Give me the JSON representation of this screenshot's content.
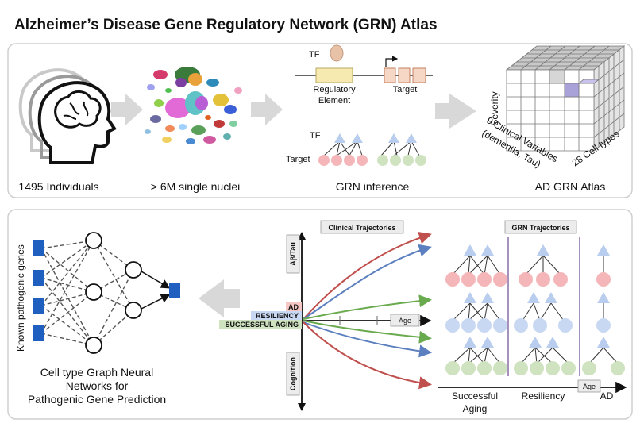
{
  "title": "Alzheimer’s Disease Gene Regulatory Network (GRN) Atlas",
  "top": {
    "individuals": "1495 Individuals",
    "nuclei": "> 6M single nuclei",
    "tf": "TF",
    "regulatory_element_line1": "Regulatory",
    "regulatory_element_line2": "Element",
    "target": "Target",
    "tf2": "TF",
    "target2": "Target",
    "grn_inference": "GRN inference",
    "severity": "Severity",
    "clinical_vars_line1": "9 Clinical Variables",
    "clinical_vars_line2": "(dementia, Tau)",
    "cell_types": "28 Cell types",
    "atlas": "AD GRN Atlas"
  },
  "bottom": {
    "known_genes": "Known pathogenic genes",
    "gnn_line1": "Cell type Graph Neural",
    "gnn_line2": "Networks for",
    "gnn_line3": "Pathogenic Gene Prediction",
    "clinical_trajectories": "Clinical Trajectories",
    "abeta_tau": "Aβ/Tau",
    "cognition": "Cognition",
    "ad": "AD",
    "resiliency": "RESILIENCY",
    "successful_aging": "SUCCESSFUL AGING",
    "age": "Age",
    "grn_trajectories": "GRN Trajectories",
    "col_successful_line1": "Successful",
    "col_successful_line2": "Aging",
    "col_resiliency": "Resiliency",
    "col_ad": "AD",
    "age2": "Age"
  },
  "colors": {
    "ad_red": "#c0504d",
    "resiliency_blue": "#5b7fbf",
    "aging_green": "#6aaa4f",
    "node_red": "#f4b6b8",
    "node_blue": "#c9d8f2",
    "node_green": "#cfe3c0",
    "tf_blue": "#b9cdee",
    "gene_blue": "#1f5fbf",
    "purple_sep": "#8a6fa8"
  }
}
